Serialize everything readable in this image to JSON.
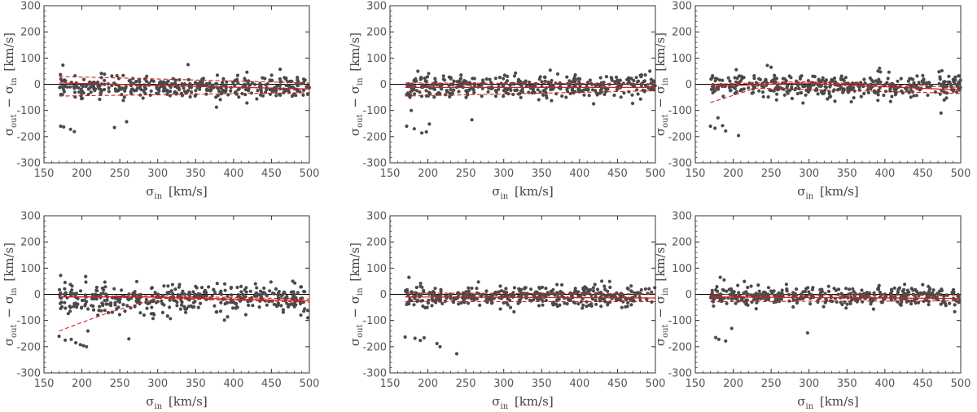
{
  "figure": {
    "colors": {
      "points": "#4a4a4a",
      "fit": "#cc2222",
      "zero_line": "#000000",
      "frame": "#333333",
      "text": "#555555"
    }
  },
  "chart_data": [
    {
      "type": "scatter",
      "panel": "top-left",
      "title": "",
      "xlabel": "σ_in [km/s]",
      "ylabel": "σ_out − σ_in [km/s]",
      "xlim": [
        150,
        500
      ],
      "ylim": [
        -300,
        300
      ],
      "xticks": [
        150,
        200,
        250,
        300,
        350,
        400,
        450,
        500
      ],
      "yticks": [
        -300,
        -200,
        -100,
        0,
        100,
        200,
        300
      ],
      "zero_line": 0,
      "scatter": {
        "n": 400,
        "x_range": [
          170,
          500
        ],
        "center": -12,
        "spread": 20,
        "seed": 11,
        "outliers": [
          [
            172,
            -160
          ],
          [
            176,
            -163
          ],
          [
            185,
            -172
          ],
          [
            190,
            -181
          ],
          [
            243,
            -165
          ],
          [
            259,
            -143
          ],
          [
            340,
            75
          ],
          [
            175,
            73
          ]
        ]
      },
      "fit": {
        "central": [
          [
            170,
            5
          ],
          [
            500,
            -18
          ]
        ],
        "upper": [
          [
            170,
            30
          ],
          [
            500,
            5
          ]
        ],
        "lower": [
          [
            170,
            -45
          ],
          [
            500,
            -32
          ]
        ]
      }
    },
    {
      "type": "scatter",
      "panel": "top-middle",
      "title": "",
      "xlabel": "σ_in [km/s]",
      "ylabel": "σ_out − σ_in [km/s]",
      "xlim": [
        150,
        500
      ],
      "ylim": [
        -300,
        300
      ],
      "xticks": [
        150,
        200,
        250,
        300,
        350,
        400,
        450,
        500
      ],
      "yticks": [
        -300,
        -200,
        -100,
        0,
        100,
        200,
        300
      ],
      "zero_line": 0,
      "scatter": {
        "n": 400,
        "x_range": [
          170,
          500
        ],
        "center": -10,
        "spread": 22,
        "seed": 23,
        "outliers": [
          [
            172,
            -160
          ],
          [
            182,
            -170
          ],
          [
            192,
            -186
          ],
          [
            198,
            -182
          ],
          [
            202,
            -152
          ],
          [
            258,
            -136
          ],
          [
            178,
            -100
          ]
        ]
      },
      "fit": {
        "central": [
          [
            170,
            -12
          ],
          [
            500,
            -12
          ]
        ],
        "upper": [
          [
            170,
            5
          ],
          [
            500,
            2
          ]
        ],
        "lower": [
          [
            170,
            -45
          ],
          [
            500,
            -25
          ]
        ]
      }
    },
    {
      "type": "scatter",
      "panel": "top-right",
      "title": "",
      "xlabel": "σ_in [km/s]",
      "ylabel": "σ_out − σ_in [km/s]",
      "xlim": [
        150,
        500
      ],
      "ylim": [
        -300,
        300
      ],
      "xticks": [
        150,
        200,
        250,
        300,
        350,
        400,
        450,
        500
      ],
      "yticks": [
        -300,
        -200,
        -100,
        0,
        100,
        200,
        300
      ],
      "zero_line": 0,
      "scatter": {
        "n": 400,
        "x_range": [
          170,
          500
        ],
        "center": -6,
        "spread": 22,
        "seed": 37,
        "outliers": [
          [
            170,
            -160
          ],
          [
            176,
            -168
          ],
          [
            180,
            -128
          ],
          [
            186,
            -158
          ],
          [
            190,
            -178
          ],
          [
            207,
            -196
          ],
          [
            245,
            72
          ],
          [
            250,
            65
          ],
          [
            474,
            -110
          ]
        ]
      },
      "fit": {
        "central": [
          [
            170,
            -8
          ],
          [
            290,
            5
          ],
          [
            500,
            -22
          ]
        ],
        "upper": [
          [
            170,
            0
          ],
          [
            290,
            10
          ],
          [
            500,
            -12
          ]
        ],
        "lower": [
          [
            170,
            -70
          ],
          [
            230,
            -15
          ],
          [
            500,
            -35
          ]
        ]
      }
    },
    {
      "type": "scatter",
      "panel": "bottom-left",
      "title": "",
      "xlabel": "σ_in [km/s]",
      "ylabel": "σ_out − σ_in [km/s]",
      "xlim": [
        150,
        500
      ],
      "ylim": [
        -300,
        300
      ],
      "xticks": [
        150,
        200,
        250,
        300,
        350,
        400,
        450,
        500
      ],
      "yticks": [
        -300,
        -200,
        -100,
        0,
        100,
        200,
        300
      ],
      "zero_line": 0,
      "scatter": {
        "n": 400,
        "x_range": [
          170,
          500
        ],
        "center": -18,
        "spread": 28,
        "seed": 53,
        "outliers": [
          [
            170,
            -160
          ],
          [
            178,
            -175
          ],
          [
            186,
            -172
          ],
          [
            192,
            -185
          ],
          [
            198,
            -192
          ],
          [
            202,
            -196
          ],
          [
            206,
            -200
          ],
          [
            208,
            -140
          ],
          [
            262,
            -170
          ],
          [
            172,
            72
          ],
          [
            205,
            68
          ],
          [
            498,
            -90
          ]
        ]
      },
      "fit": {
        "central": [
          [
            170,
            -10
          ],
          [
            280,
            -10
          ],
          [
            500,
            -25
          ]
        ],
        "upper": [
          [
            170,
            -10
          ],
          [
            280,
            -5
          ],
          [
            500,
            -18
          ]
        ],
        "lower": [
          [
            170,
            -140
          ],
          [
            235,
            -70
          ],
          [
            300,
            -15
          ],
          [
            500,
            -30
          ]
        ]
      }
    },
    {
      "type": "scatter",
      "panel": "bottom-middle",
      "title": "",
      "xlabel": "σ_in [km/s]",
      "ylabel": "σ_out − σ_in [km/s]",
      "xlim": [
        150,
        500
      ],
      "ylim": [
        -300,
        300
      ],
      "xticks": [
        150,
        200,
        250,
        300,
        350,
        400,
        450,
        500
      ],
      "yticks": [
        -300,
        -200,
        -100,
        0,
        100,
        200,
        300
      ],
      "zero_line": 0,
      "scatter": {
        "n": 400,
        "x_range": [
          170,
          500
        ],
        "center": -8,
        "spread": 20,
        "seed": 71,
        "outliers": [
          [
            170,
            -163
          ],
          [
            183,
            -168
          ],
          [
            190,
            -176
          ],
          [
            195,
            -166
          ],
          [
            212,
            -188
          ],
          [
            216,
            -200
          ],
          [
            238,
            -227
          ],
          [
            175,
            65
          ]
        ]
      },
      "fit": {
        "central": [
          [
            170,
            -10
          ],
          [
            500,
            -14
          ]
        ],
        "upper": [
          [
            170,
            5
          ],
          [
            500,
            2
          ]
        ],
        "lower": [
          [
            170,
            -28
          ],
          [
            500,
            -28
          ]
        ]
      }
    },
    {
      "type": "scatter",
      "panel": "bottom-right",
      "title": "",
      "xlabel": "σ_in [km/s]",
      "ylabel": "σ_out − σ_in [km/s]",
      "xlim": [
        150,
        500
      ],
      "ylim": [
        -300,
        300
      ],
      "xticks": [
        150,
        200,
        250,
        300,
        350,
        400,
        450,
        500
      ],
      "yticks": [
        -300,
        -200,
        -100,
        0,
        100,
        200,
        300
      ],
      "zero_line": 0,
      "scatter": {
        "n": 400,
        "x_range": [
          170,
          500
        ],
        "center": -8,
        "spread": 18,
        "seed": 89,
        "outliers": [
          [
            177,
            -165
          ],
          [
            181,
            -172
          ],
          [
            190,
            -178
          ],
          [
            198,
            -130
          ],
          [
            298,
            -147
          ],
          [
            183,
            65
          ],
          [
            188,
            55
          ]
        ]
      },
      "fit": {
        "central": [
          [
            170,
            -10
          ],
          [
            500,
            -16
          ]
        ],
        "upper": [
          [
            170,
            0
          ],
          [
            500,
            -5
          ]
        ],
        "lower": [
          [
            170,
            -28
          ],
          [
            500,
            -25
          ]
        ]
      }
    }
  ]
}
